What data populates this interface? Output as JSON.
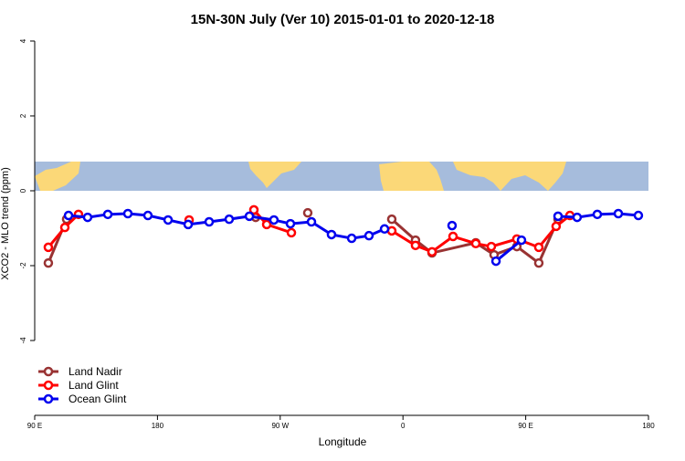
{
  "chart_data": {
    "type": "line",
    "title": "15N-30N July (Ver 10)   2015-01-01 to 2020-12-18",
    "x_label": "Longitude",
    "y_label": "XCO2 - MLO trend (ppm)",
    "xlim": [
      90,
      540
    ],
    "xticks": [
      {
        "value": 90,
        "label": "90 E"
      },
      180,
      {
        "value": 270,
        "label": "90 W"
      },
      {
        "value": 360,
        "label": "0"
      },
      {
        "value": 450,
        "label": "90 E"
      },
      {
        "value": 540,
        "label": "180"
      }
    ],
    "ylim": [
      -6,
      4.17
    ],
    "yticks": [
      -4,
      -2,
      0,
      2,
      4
    ],
    "legend": "bottom-left",
    "series": [
      {
        "name": "Land Nadir",
        "color": "#993333",
        "x": [
          100.0,
          113.4,
          null,
          252.0,
          null,
          290.2,
          null,
          351.8,
          369.2,
          381.3,
          413.4,
          426.8,
          443.5,
          459.6,
          473.7
        ],
        "values": [
          -1.93,
          -0.76,
          null,
          -0.71,
          null,
          -0.59,
          null,
          -0.76,
          -1.32,
          -1.66,
          -1.39,
          -1.71,
          -1.49,
          -1.93,
          -0.76
        ]
      },
      {
        "name": "Land Glint",
        "color": "#ff0000",
        "x": [
          100.0,
          112.1,
          122.1,
          null,
          203.2,
          null,
          250.7,
          260.1,
          278.2,
          null,
          351.8,
          369.2,
          381.3,
          396.7,
          413.4,
          424.8,
          443.5,
          459.6,
          472.3,
          482.4
        ],
        "values": [
          -1.51,
          -0.98,
          -0.63,
          null,
          -0.78,
          null,
          -0.51,
          -0.9,
          -1.12,
          null,
          -1.07,
          -1.46,
          -1.63,
          -1.22,
          -1.41,
          -1.49,
          -1.29,
          -1.51,
          -0.95,
          -0.66
        ]
      },
      {
        "name": "Ocean Glint",
        "color": "#0000ee",
        "x": [
          114.8,
          128.8,
          143.6,
          158.3,
          173.0,
          187.8,
          202.5,
          217.9,
          232.6,
          247.4,
          265.4,
          277.5,
          292.9,
          307.6,
          322.4,
          335.1,
          346.5,
          null,
          396.0,
          null,
          428.2,
          446.9,
          null,
          473.7,
          487.7,
          502.5,
          517.9,
          532.6
        ],
        "values": [
          -0.66,
          -0.71,
          -0.63,
          -0.61,
          -0.66,
          -0.78,
          -0.9,
          -0.83,
          -0.76,
          -0.68,
          -0.78,
          -0.88,
          -0.83,
          -1.17,
          -1.27,
          -1.2,
          -1.02,
          null,
          -0.93,
          null,
          -1.88,
          -1.32,
          null,
          -0.68,
          -0.71,
          -0.63,
          -0.61,
          -0.66
        ]
      }
    ]
  }
}
